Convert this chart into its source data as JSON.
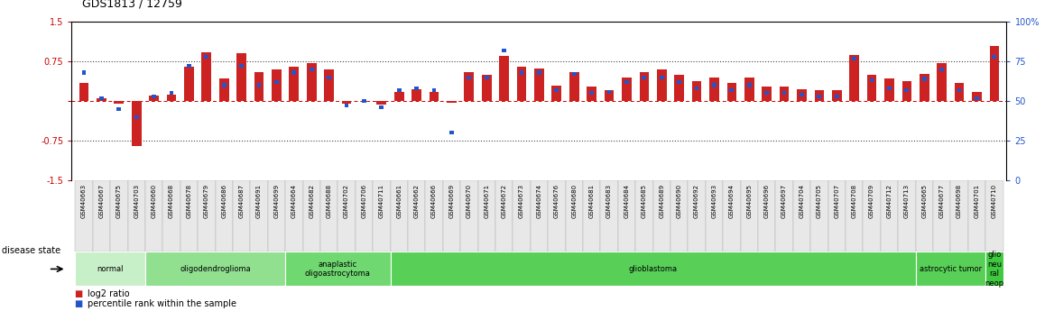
{
  "title": "GDS1813 / 12759",
  "samples": [
    "GSM40663",
    "GSM40667",
    "GSM40675",
    "GSM40703",
    "GSM40660",
    "GSM40668",
    "GSM40678",
    "GSM40679",
    "GSM40686",
    "GSM40687",
    "GSM40691",
    "GSM40699",
    "GSM40664",
    "GSM40682",
    "GSM40688",
    "GSM40702",
    "GSM40706",
    "GSM40711",
    "GSM40661",
    "GSM40662",
    "GSM40666",
    "GSM40669",
    "GSM40670",
    "GSM40671",
    "GSM40672",
    "GSM40673",
    "GSM40674",
    "GSM40676",
    "GSM40680",
    "GSM40681",
    "GSM40683",
    "GSM40684",
    "GSM40685",
    "GSM40689",
    "GSM40690",
    "GSM40692",
    "GSM40693",
    "GSM40694",
    "GSM40695",
    "GSM40696",
    "GSM40697",
    "GSM40704",
    "GSM40705",
    "GSM40707",
    "GSM40708",
    "GSM40709",
    "GSM40712",
    "GSM40713",
    "GSM40665",
    "GSM40677",
    "GSM40698",
    "GSM40701",
    "GSM40710"
  ],
  "log2_ratio": [
    0.35,
    0.05,
    -0.05,
    -0.85,
    0.1,
    0.13,
    0.65,
    0.92,
    0.42,
    0.9,
    0.55,
    0.6,
    0.65,
    0.72,
    0.6,
    -0.05,
    0.0,
    -0.07,
    0.18,
    0.22,
    0.18,
    -0.03,
    0.55,
    0.5,
    0.85,
    0.65,
    0.62,
    0.3,
    0.55,
    0.28,
    0.2,
    0.45,
    0.55,
    0.6,
    0.5,
    0.38,
    0.45,
    0.35,
    0.45,
    0.28,
    0.28,
    0.22,
    0.2,
    0.2,
    0.88,
    0.5,
    0.42,
    0.38,
    0.52,
    0.72,
    0.35,
    0.18,
    1.05
  ],
  "percentile": [
    68,
    52,
    45,
    40,
    53,
    55,
    72,
    78,
    60,
    72,
    60,
    62,
    68,
    70,
    65,
    47,
    50,
    46,
    57,
    58,
    57,
    30,
    65,
    65,
    82,
    68,
    68,
    57,
    67,
    55,
    56,
    62,
    65,
    65,
    62,
    58,
    60,
    57,
    60,
    55,
    55,
    54,
    53,
    53,
    77,
    63,
    58,
    57,
    64,
    70,
    57,
    52,
    78
  ],
  "disease_groups": [
    {
      "label": "normal",
      "start": 0,
      "end": 4,
      "color": "#c8f0c8"
    },
    {
      "label": "oligodendroglioma",
      "start": 4,
      "end": 12,
      "color": "#90e090"
    },
    {
      "label": "anaplastic\noligoastrocytoma",
      "start": 12,
      "end": 18,
      "color": "#70d870"
    },
    {
      "label": "glioblastoma",
      "start": 18,
      "end": 48,
      "color": "#58d058"
    },
    {
      "label": "astrocytic tumor",
      "start": 48,
      "end": 52,
      "color": "#58d058"
    },
    {
      "label": "glio\nneu\nral\nneop",
      "start": 52,
      "end": 53,
      "color": "#40c840"
    }
  ],
  "ylim_left": [
    -1.5,
    1.5
  ],
  "yticks_left": [
    -1.5,
    -0.75,
    0.0,
    0.75,
    1.5
  ],
  "yticks_right": [
    0,
    25,
    50,
    75,
    100
  ],
  "red_color": "#cc2222",
  "blue_color": "#2255cc",
  "bg_color": "#ffffff",
  "dotted_line_color": "#444444",
  "zero_line_color": "#cc0000",
  "title_fontsize": 9,
  "tick_fontsize": 5.0,
  "legend_fontsize": 7
}
